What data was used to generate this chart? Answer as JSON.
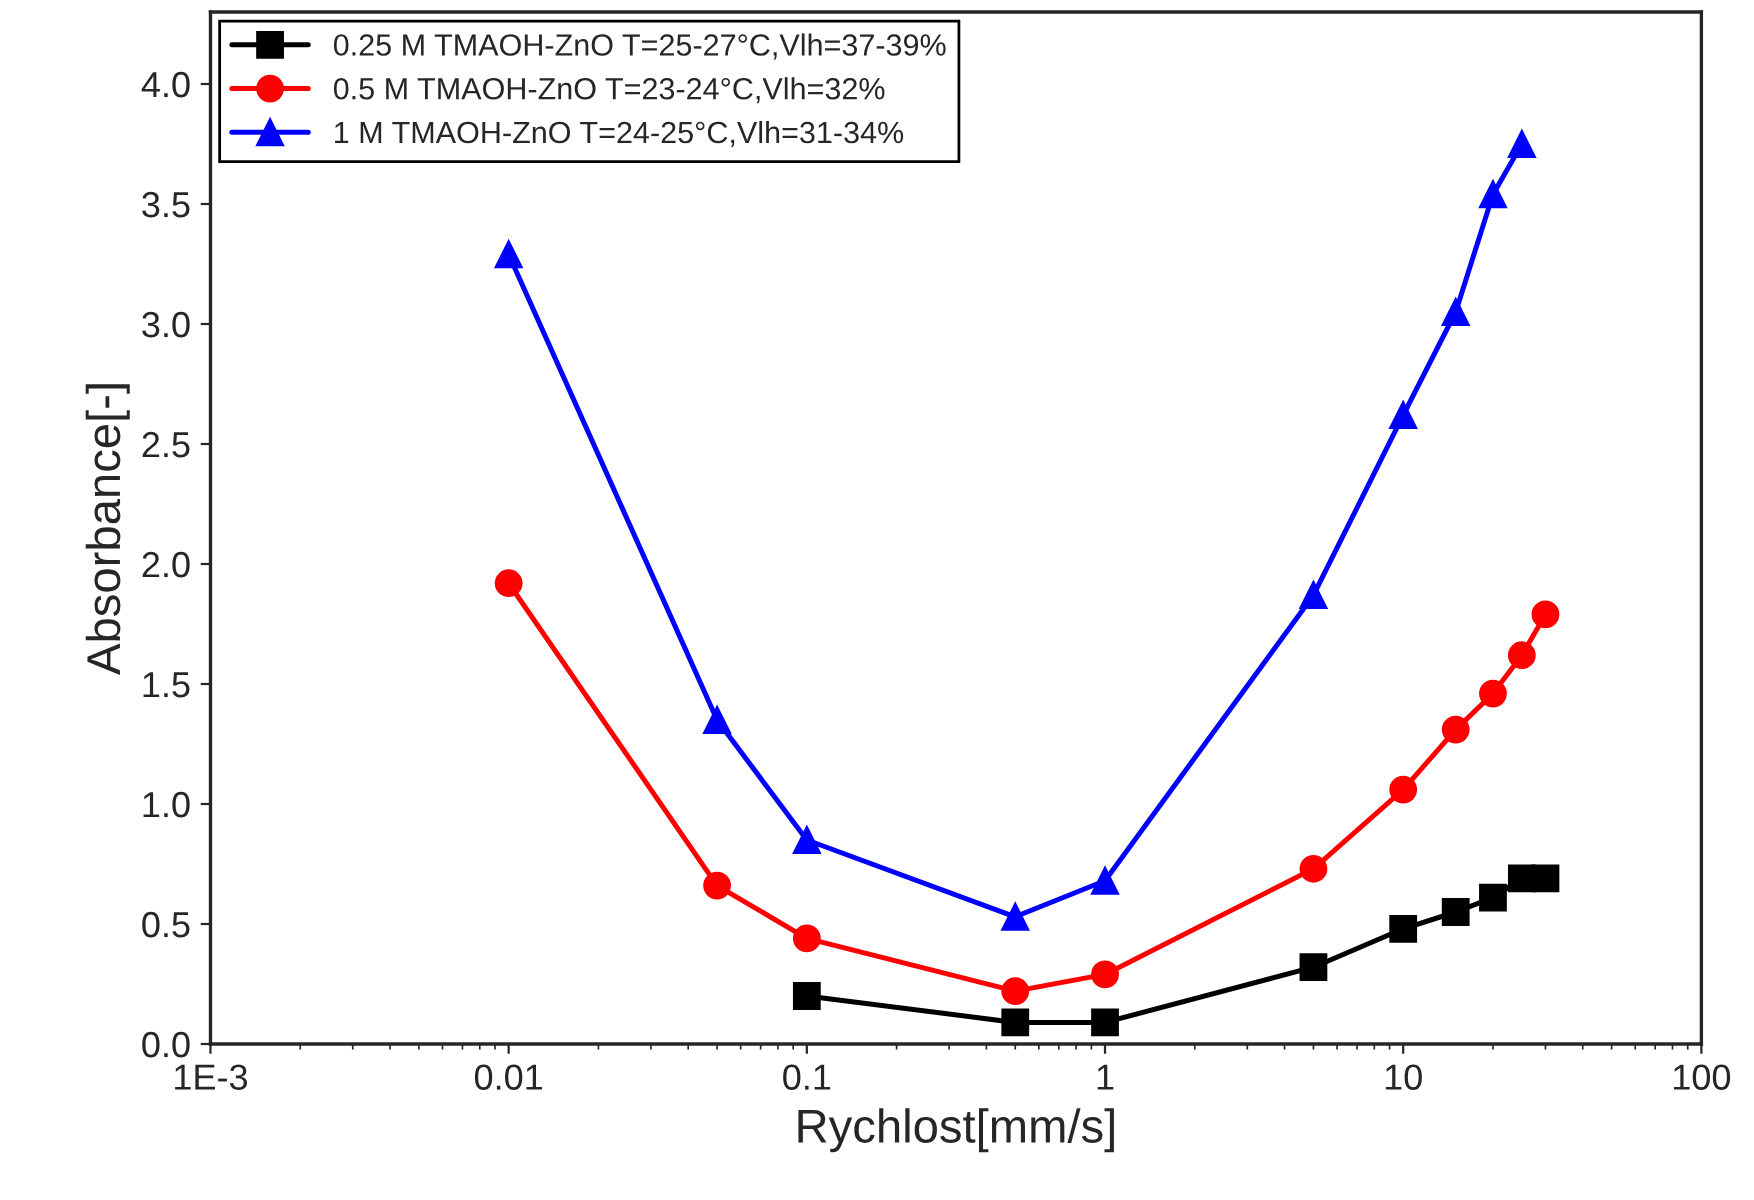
{
  "chart_data": {
    "type": "line",
    "xlabel": "Rychlost[mm/s]",
    "ylabel": "Absorbance[-]",
    "log": "x",
    "grid": false,
    "legend": "top left",
    "line_style": "solid",
    "xlim": [
      0.001,
      100
    ],
    "xticks": [
      {
        "value": 0.001,
        "label": "1E-3"
      },
      0.01,
      0.1,
      1,
      10,
      100
    ],
    "ylim": [
      0,
      4.3
    ],
    "yticks": [
      {
        "value": 0,
        "label": "0.0"
      },
      0.5,
      {
        "value": 1,
        "label": "1.0"
      },
      1.5,
      {
        "value": 2,
        "label": "2.0"
      },
      2.5,
      {
        "value": 3,
        "label": "3.0"
      },
      3.5,
      {
        "value": 4,
        "label": "4.0"
      }
    ],
    "series": [
      {
        "name": "0.25 M TMAOH-ZnO T=25-27°C,Vlh=37-39%",
        "color": "#000000",
        "marker": "square",
        "x": [
          0.1,
          0.5,
          1,
          5,
          10,
          15,
          20,
          25,
          30
        ],
        "values": [
          0.2,
          0.09,
          0.09,
          0.32,
          0.48,
          0.55,
          0.61,
          0.69,
          0.69
        ]
      },
      {
        "name": "0.5 M TMAOH-ZnO T=23-24°C,Vlh=32%",
        "color": "#ff0000",
        "marker": "circle",
        "x": [
          0.01,
          0.05,
          0.1,
          0.5,
          1,
          5,
          10,
          15,
          20,
          25,
          30
        ],
        "values": [
          1.92,
          0.66,
          0.44,
          0.22,
          0.29,
          0.73,
          1.06,
          1.31,
          1.46,
          1.62,
          1.79
        ]
      },
      {
        "name": "1 M TMAOH-ZnO T=24-25°C,Vlh=31-34%",
        "color": "#0000ff",
        "marker": "triangle",
        "x": [
          0.01,
          0.05,
          0.1,
          0.5,
          1,
          5,
          10,
          15,
          20,
          25
        ],
        "values": [
          3.29,
          1.35,
          0.85,
          0.53,
          0.68,
          1.87,
          2.62,
          3.05,
          3.54,
          3.75
        ]
      }
    ]
  }
}
